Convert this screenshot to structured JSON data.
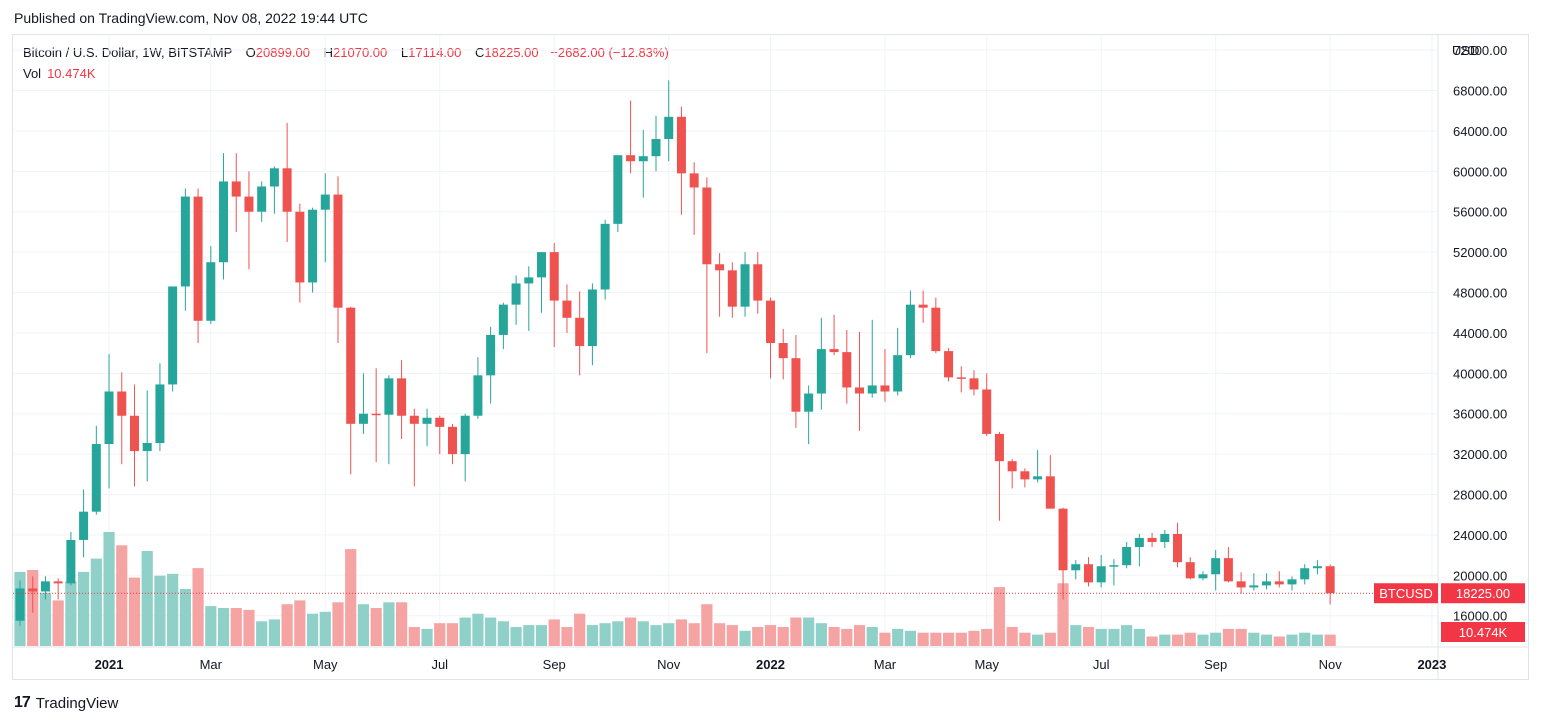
{
  "published": "Published on TradingView.com, Nov 08, 2022 19:44 UTC",
  "legend": {
    "symbol": "Bitcoin / U.S. Dollar, 1W, BITSTAMP",
    "open_label": "O",
    "open": "20899.00",
    "high_label": "H",
    "high": "21070.00",
    "low_label": "L",
    "low": "17114.00",
    "close_label": "C",
    "close": "18225.00",
    "change": "−2682.00 (−12.83%)"
  },
  "volume": {
    "label": "Vol",
    "value": "10.474K"
  },
  "currency": "USD",
  "footer": {
    "brand": "TradingView",
    "logo_mark": "17"
  },
  "badges": {
    "symbol": "BTCUSD",
    "price": "18225.00",
    "volume": "10.474K"
  },
  "colors": {
    "up": "#26a69a",
    "down": "#ef5350",
    "up_vol": "#8fd1c9",
    "down_vol": "#f5a3a3",
    "badge": "#f23645"
  },
  "chart_data": {
    "type": "candlestick",
    "title": "Bitcoin / U.S. Dollar, 1W, BITSTAMP",
    "price_ticks": [
      "72000.00",
      "68000.00",
      "64000.00",
      "60000.00",
      "56000.00",
      "52000.00",
      "48000.00",
      "44000.00",
      "40000.00",
      "36000.00",
      "32000.00",
      "28000.00",
      "24000.00",
      "20000.00",
      "16000.00"
    ],
    "ylim": [
      13000,
      73500
    ],
    "time_labels": [
      {
        "label": "2021",
        "bar": 7,
        "bold": true
      },
      {
        "label": "Mar",
        "bar": 15
      },
      {
        "label": "May",
        "bar": 24
      },
      {
        "label": "Jul",
        "bar": 33
      },
      {
        "label": "Sep",
        "bar": 42
      },
      {
        "label": "Nov",
        "bar": 51
      },
      {
        "label": "2022",
        "bar": 59,
        "bold": true
      },
      {
        "label": "Mar",
        "bar": 68
      },
      {
        "label": "May",
        "bar": 76
      },
      {
        "label": "Jul",
        "bar": 85
      },
      {
        "label": "Sep",
        "bar": 94
      },
      {
        "label": "Nov",
        "bar": 103
      },
      {
        "label": "2023",
        "bar": 111,
        "bold": true
      }
    ],
    "last_price": 18225,
    "candles": [
      {
        "o": 15500,
        "h": 19500,
        "l": 15000,
        "c": 18700,
        "v": 0.39
      },
      {
        "o": 18700,
        "h": 19900,
        "l": 16300,
        "c": 18400,
        "v": 0.4
      },
      {
        "o": 18400,
        "h": 19900,
        "l": 17600,
        "c": 19400,
        "v": 0.28
      },
      {
        "o": 19400,
        "h": 19700,
        "l": 17600,
        "c": 19200,
        "v": 0.24
      },
      {
        "o": 19200,
        "h": 24300,
        "l": 19000,
        "c": 23500,
        "v": 0.34
      },
      {
        "o": 23500,
        "h": 28500,
        "l": 21800,
        "c": 26300,
        "v": 0.39
      },
      {
        "o": 26300,
        "h": 34800,
        "l": 26000,
        "c": 33000,
        "v": 0.46
      },
      {
        "o": 33000,
        "h": 41900,
        "l": 28600,
        "c": 38200,
        "v": 0.6
      },
      {
        "o": 38200,
        "h": 40100,
        "l": 31000,
        "c": 35800,
        "v": 0.53
      },
      {
        "o": 35800,
        "h": 38900,
        "l": 28800,
        "c": 32300,
        "v": 0.36
      },
      {
        "o": 32300,
        "h": 38300,
        "l": 29300,
        "c": 33100,
        "v": 0.5
      },
      {
        "o": 33100,
        "h": 41000,
        "l": 32300,
        "c": 38900,
        "v": 0.37
      },
      {
        "o": 38900,
        "h": 48200,
        "l": 38200,
        "c": 48600,
        "v": 0.38
      },
      {
        "o": 48600,
        "h": 58300,
        "l": 46200,
        "c": 57500,
        "v": 0.3
      },
      {
        "o": 57500,
        "h": 58300,
        "l": 43000,
        "c": 45200,
        "v": 0.41
      },
      {
        "o": 45200,
        "h": 52600,
        "l": 44900,
        "c": 51000,
        "v": 0.21
      },
      {
        "o": 51000,
        "h": 61800,
        "l": 49300,
        "c": 59000,
        "v": 0.2
      },
      {
        "o": 59000,
        "h": 61800,
        "l": 54000,
        "c": 57500,
        "v": 0.2
      },
      {
        "o": 57500,
        "h": 60000,
        "l": 50300,
        "c": 56000,
        "v": 0.19
      },
      {
        "o": 56000,
        "h": 59000,
        "l": 55000,
        "c": 58500,
        "v": 0.13
      },
      {
        "o": 58500,
        "h": 60500,
        "l": 55800,
        "c": 60300,
        "v": 0.14
      },
      {
        "o": 60300,
        "h": 64800,
        "l": 53000,
        "c": 56000,
        "v": 0.22
      },
      {
        "o": 56000,
        "h": 56800,
        "l": 47000,
        "c": 49000,
        "v": 0.24
      },
      {
        "o": 49000,
        "h": 56400,
        "l": 48000,
        "c": 56200,
        "v": 0.17
      },
      {
        "o": 56200,
        "h": 59800,
        "l": 51000,
        "c": 57700,
        "v": 0.18
      },
      {
        "o": 57700,
        "h": 59500,
        "l": 43000,
        "c": 46500,
        "v": 0.23
      },
      {
        "o": 46500,
        "h": 46600,
        "l": 30000,
        "c": 35000,
        "v": 0.51
      },
      {
        "o": 35000,
        "h": 40000,
        "l": 34000,
        "c": 36000,
        "v": 0.22
      },
      {
        "o": 36000,
        "h": 40500,
        "l": 31200,
        "c": 35900,
        "v": 0.2
      },
      {
        "o": 35900,
        "h": 39800,
        "l": 31000,
        "c": 39500,
        "v": 0.23
      },
      {
        "o": 39500,
        "h": 41300,
        "l": 33500,
        "c": 35800,
        "v": 0.23
      },
      {
        "o": 35800,
        "h": 36500,
        "l": 28800,
        "c": 35000,
        "v": 0.1
      },
      {
        "o": 35000,
        "h": 36500,
        "l": 32800,
        "c": 35600,
        "v": 0.09
      },
      {
        "o": 35600,
        "h": 35800,
        "l": 32000,
        "c": 34700,
        "v": 0.12
      },
      {
        "o": 34700,
        "h": 35000,
        "l": 31000,
        "c": 32000,
        "v": 0.12
      },
      {
        "o": 32000,
        "h": 36000,
        "l": 29300,
        "c": 35800,
        "v": 0.15
      },
      {
        "o": 35800,
        "h": 41600,
        "l": 35500,
        "c": 39800,
        "v": 0.17
      },
      {
        "o": 39800,
        "h": 44600,
        "l": 37000,
        "c": 43800,
        "v": 0.15
      },
      {
        "o": 43800,
        "h": 47000,
        "l": 42400,
        "c": 46800,
        "v": 0.13
      },
      {
        "o": 46800,
        "h": 49700,
        "l": 44800,
        "c": 48900,
        "v": 0.1
      },
      {
        "o": 48900,
        "h": 50600,
        "l": 44200,
        "c": 49500,
        "v": 0.11
      },
      {
        "o": 49500,
        "h": 52000,
        "l": 46000,
        "c": 52000,
        "v": 0.11
      },
      {
        "o": 52000,
        "h": 52900,
        "l": 42600,
        "c": 47200,
        "v": 0.14
      },
      {
        "o": 47200,
        "h": 48800,
        "l": 44000,
        "c": 45500,
        "v": 0.1
      },
      {
        "o": 45500,
        "h": 48100,
        "l": 39800,
        "c": 42700,
        "v": 0.17
      },
      {
        "o": 42700,
        "h": 48900,
        "l": 40800,
        "c": 48300,
        "v": 0.11
      },
      {
        "o": 48300,
        "h": 55200,
        "l": 47300,
        "c": 54800,
        "v": 0.12
      },
      {
        "o": 54800,
        "h": 61100,
        "l": 54000,
        "c": 61600,
        "v": 0.13
      },
      {
        "o": 61600,
        "h": 67000,
        "l": 59800,
        "c": 61000,
        "v": 0.15
      },
      {
        "o": 61000,
        "h": 64100,
        "l": 57400,
        "c": 61500,
        "v": 0.13
      },
      {
        "o": 61500,
        "h": 65500,
        "l": 60000,
        "c": 63200,
        "v": 0.11
      },
      {
        "o": 63200,
        "h": 69000,
        "l": 61000,
        "c": 65400,
        "v": 0.12
      },
      {
        "o": 65400,
        "h": 66400,
        "l": 55700,
        "c": 59800,
        "v": 0.14
      },
      {
        "o": 59800,
        "h": 60900,
        "l": 53700,
        "c": 58400,
        "v": 0.12
      },
      {
        "o": 58400,
        "h": 59400,
        "l": 42000,
        "c": 50800,
        "v": 0.22
      },
      {
        "o": 50800,
        "h": 51900,
        "l": 45600,
        "c": 50200,
        "v": 0.12
      },
      {
        "o": 50200,
        "h": 51000,
        "l": 45500,
        "c": 46600,
        "v": 0.11
      },
      {
        "o": 46600,
        "h": 52000,
        "l": 45600,
        "c": 50800,
        "v": 0.08
      },
      {
        "o": 50800,
        "h": 52000,
        "l": 45900,
        "c": 47200,
        "v": 0.1
      },
      {
        "o": 47200,
        "h": 47500,
        "l": 39500,
        "c": 43000,
        "v": 0.11
      },
      {
        "o": 43000,
        "h": 44400,
        "l": 39400,
        "c": 41500,
        "v": 0.1
      },
      {
        "o": 41500,
        "h": 43800,
        "l": 34600,
        "c": 36200,
        "v": 0.15
      },
      {
        "o": 36200,
        "h": 38800,
        "l": 33000,
        "c": 38000,
        "v": 0.15
      },
      {
        "o": 38000,
        "h": 45500,
        "l": 36400,
        "c": 42400,
        "v": 0.12
      },
      {
        "o": 42400,
        "h": 45800,
        "l": 41800,
        "c": 42100,
        "v": 0.1
      },
      {
        "o": 42100,
        "h": 44300,
        "l": 37000,
        "c": 38600,
        "v": 0.09
      },
      {
        "o": 38600,
        "h": 44100,
        "l": 34300,
        "c": 38000,
        "v": 0.11
      },
      {
        "o": 38000,
        "h": 45300,
        "l": 37600,
        "c": 38800,
        "v": 0.1
      },
      {
        "o": 38800,
        "h": 42400,
        "l": 37200,
        "c": 38200,
        "v": 0.07
      },
      {
        "o": 38200,
        "h": 44500,
        "l": 37800,
        "c": 41800,
        "v": 0.09
      },
      {
        "o": 41800,
        "h": 48200,
        "l": 41500,
        "c": 46800,
        "v": 0.08
      },
      {
        "o": 46800,
        "h": 48200,
        "l": 45000,
        "c": 46500,
        "v": 0.07
      },
      {
        "o": 46500,
        "h": 47500,
        "l": 42000,
        "c": 42200,
        "v": 0.07
      },
      {
        "o": 42200,
        "h": 42500,
        "l": 39200,
        "c": 39600,
        "v": 0.07
      },
      {
        "o": 39600,
        "h": 40700,
        "l": 38100,
        "c": 39500,
        "v": 0.07
      },
      {
        "o": 39500,
        "h": 40300,
        "l": 37800,
        "c": 38400,
        "v": 0.08
      },
      {
        "o": 38400,
        "h": 40000,
        "l": 33800,
        "c": 34000,
        "v": 0.09
      },
      {
        "o": 34000,
        "h": 34200,
        "l": 25400,
        "c": 31300,
        "v": 0.31
      },
      {
        "o": 31300,
        "h": 31500,
        "l": 28600,
        "c": 30300,
        "v": 0.1
      },
      {
        "o": 30300,
        "h": 30600,
        "l": 28700,
        "c": 29500,
        "v": 0.07
      },
      {
        "o": 29500,
        "h": 32400,
        "l": 29200,
        "c": 29800,
        "v": 0.06
      },
      {
        "o": 29800,
        "h": 31900,
        "l": 26600,
        "c": 26600,
        "v": 0.07
      },
      {
        "o": 26600,
        "h": 26700,
        "l": 17600,
        "c": 20500,
        "v": 0.33
      },
      {
        "o": 20500,
        "h": 21500,
        "l": 19600,
        "c": 21100,
        "v": 0.11
      },
      {
        "o": 21100,
        "h": 21800,
        "l": 18900,
        "c": 19300,
        "v": 0.1
      },
      {
        "o": 19300,
        "h": 22000,
        "l": 18800,
        "c": 20900,
        "v": 0.09
      },
      {
        "o": 20900,
        "h": 21600,
        "l": 19000,
        "c": 21000,
        "v": 0.09
      },
      {
        "o": 21000,
        "h": 23300,
        "l": 20700,
        "c": 22800,
        "v": 0.11
      },
      {
        "o": 22800,
        "h": 24100,
        "l": 20900,
        "c": 23700,
        "v": 0.09
      },
      {
        "o": 23700,
        "h": 24200,
        "l": 22800,
        "c": 23300,
        "v": 0.05
      },
      {
        "o": 23300,
        "h": 24500,
        "l": 22700,
        "c": 24100,
        "v": 0.06
      },
      {
        "o": 24100,
        "h": 25200,
        "l": 20800,
        "c": 21300,
        "v": 0.06
      },
      {
        "o": 21300,
        "h": 21800,
        "l": 19600,
        "c": 19700,
        "v": 0.07
      },
      {
        "o": 19700,
        "h": 20400,
        "l": 19500,
        "c": 20100,
        "v": 0.06
      },
      {
        "o": 20100,
        "h": 22500,
        "l": 18500,
        "c": 21700,
        "v": 0.07
      },
      {
        "o": 21700,
        "h": 22800,
        "l": 19300,
        "c": 19400,
        "v": 0.09
      },
      {
        "o": 19400,
        "h": 20300,
        "l": 18200,
        "c": 18800,
        "v": 0.09
      },
      {
        "o": 18800,
        "h": 20200,
        "l": 18500,
        "c": 19000,
        "v": 0.07
      },
      {
        "o": 19000,
        "h": 20200,
        "l": 18600,
        "c": 19400,
        "v": 0.06
      },
      {
        "o": 19400,
        "h": 20400,
        "l": 18800,
        "c": 19100,
        "v": 0.05
      },
      {
        "o": 19100,
        "h": 19900,
        "l": 18500,
        "c": 19600,
        "v": 0.06
      },
      {
        "o": 19600,
        "h": 21100,
        "l": 19100,
        "c": 20700,
        "v": 0.07
      },
      {
        "o": 20700,
        "h": 21500,
        "l": 20100,
        "c": 20900,
        "v": 0.06
      },
      {
        "o": 20900,
        "h": 21070,
        "l": 17114,
        "c": 18225,
        "v": 0.06
      }
    ]
  }
}
